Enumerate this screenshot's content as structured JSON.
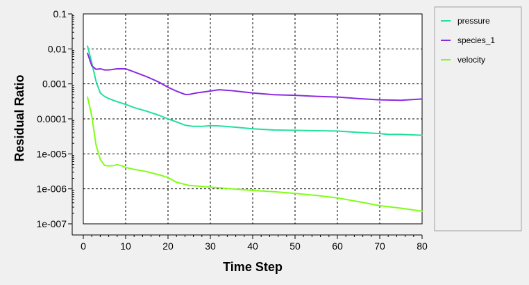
{
  "chart_data": {
    "type": "line",
    "xlabel": "Time Step",
    "ylabel": "Residual Ratio",
    "xlim": [
      0,
      80
    ],
    "ylim": [
      1e-07,
      0.1
    ],
    "yscale": "log",
    "grid": true,
    "legend_position": "right",
    "x_ticks": [
      "0",
      "10",
      "20",
      "30",
      "40",
      "50",
      "60",
      "70",
      "80"
    ],
    "y_ticks": [
      "0.1",
      "0.01",
      "0.001",
      "0.0001",
      "1e-005",
      "1e-006",
      "1e-007"
    ],
    "colors": {
      "pressure": "#21e09a",
      "species_1": "#8a2be2",
      "velocity": "#7fff14"
    },
    "series": [
      {
        "name": "pressure",
        "color": "#21e09a",
        "x": [
          1,
          2,
          3,
          4,
          5,
          6,
          8,
          10,
          12,
          15,
          18,
          20,
          22,
          24,
          26,
          28,
          30,
          32,
          35,
          40,
          45,
          50,
          55,
          60,
          65,
          70,
          72,
          75,
          80
        ],
        "y": [
          0.012,
          0.004,
          0.0012,
          0.00055,
          0.00044,
          0.00038,
          0.00031,
          0.00026,
          0.00021,
          0.000165,
          0.000125,
          0.0001,
          8.2e-05,
          6.6e-05,
          6.1e-05,
          6.1e-05,
          6.4e-05,
          6.3e-05,
          5.9e-05,
          5.2e-05,
          4.8e-05,
          4.7e-05,
          4.6e-05,
          4.5e-05,
          4.1e-05,
          3.8e-05,
          3.6e-05,
          3.6e-05,
          3.4e-05
        ]
      },
      {
        "name": "species_1",
        "color": "#8a2be2",
        "x": [
          1,
          2,
          3,
          4,
          5,
          6,
          8,
          10,
          12,
          15,
          18,
          20,
          22,
          24,
          25,
          27,
          29,
          32,
          35,
          40,
          45,
          50,
          55,
          60,
          65,
          70,
          75,
          80
        ],
        "y": [
          0.0075,
          0.0033,
          0.0026,
          0.0027,
          0.0025,
          0.0025,
          0.0027,
          0.0027,
          0.0022,
          0.0016,
          0.0011,
          0.0008,
          0.00062,
          0.0005,
          0.0005,
          0.00056,
          0.0006,
          0.00068,
          0.00064,
          0.00055,
          0.00049,
          0.00047,
          0.00044,
          0.00042,
          0.00038,
          0.00035,
          0.00034,
          0.00037
        ]
      },
      {
        "name": "velocity",
        "color": "#7fff14",
        "x": [
          1,
          2,
          3,
          4,
          5,
          6,
          7,
          8,
          9,
          10,
          12,
          15,
          18,
          20,
          22,
          25,
          30,
          35,
          40,
          45,
          50,
          55,
          60,
          65,
          70,
          75,
          80
        ],
        "y": [
          0.00042,
          0.00012,
          1.8e-05,
          7e-06,
          4.7e-06,
          4.5e-06,
          4.6e-06,
          4.9e-06,
          4.6e-06,
          4.1e-06,
          3.6e-06,
          3.1e-06,
          2.5e-06,
          2.1e-06,
          1.55e-06,
          1.25e-06,
          1.12e-06,
          1e-06,
          9e-07,
          8.3e-07,
          7.4e-07,
          6.5e-07,
          5.5e-07,
          4.3e-07,
          3.3e-07,
          2.8e-07,
          2.3e-07
        ]
      }
    ]
  }
}
